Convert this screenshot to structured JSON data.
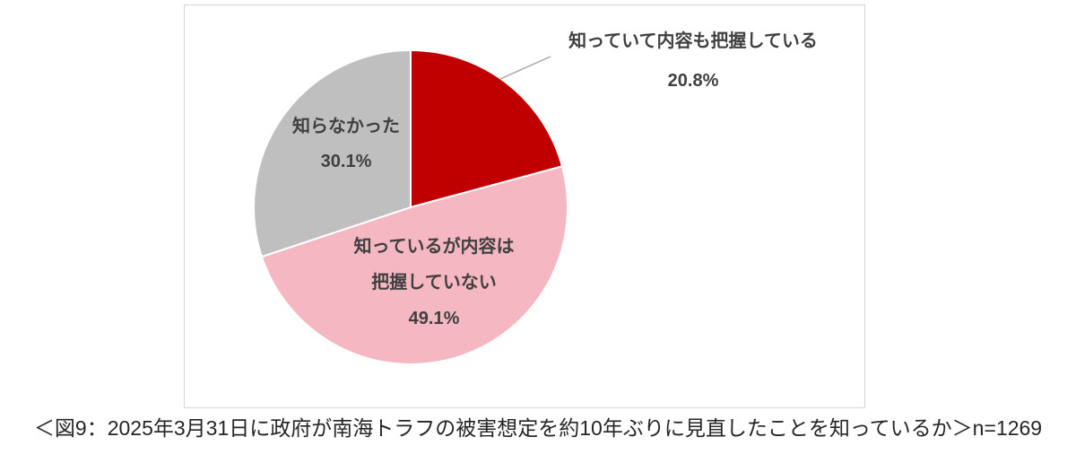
{
  "chart_data": {
    "type": "pie",
    "title": "",
    "direction": "clockwise",
    "start_angle": "top",
    "legend_position": "none",
    "slices": [
      {
        "label": "知っていて内容も把握している",
        "value": 20.8,
        "pct": "20.8%",
        "color": "#c00000",
        "label_placement": "outside-top-right"
      },
      {
        "label": "知っているが内容は把握していない",
        "label_lines": [
          "知っているが内容は",
          "把握していない"
        ],
        "value": 49.1,
        "pct": "49.1%",
        "color": "#f5b7c1",
        "label_placement": "inside-bottom"
      },
      {
        "label": "知らなかった",
        "value": 30.1,
        "pct": "30.1%",
        "color": "#bfbfbf",
        "label_placement": "inside-left"
      }
    ]
  },
  "caption": "＜図9：2025年3月31日に政府が南海トラフの被害想定を約10年ぶりに見直したことを知っているか＞n=1269",
  "colors": {
    "leader_line": "#a6a6a6",
    "slice_separator": "#ffffff",
    "label_text": "#404040",
    "caption_text": "#262626"
  }
}
